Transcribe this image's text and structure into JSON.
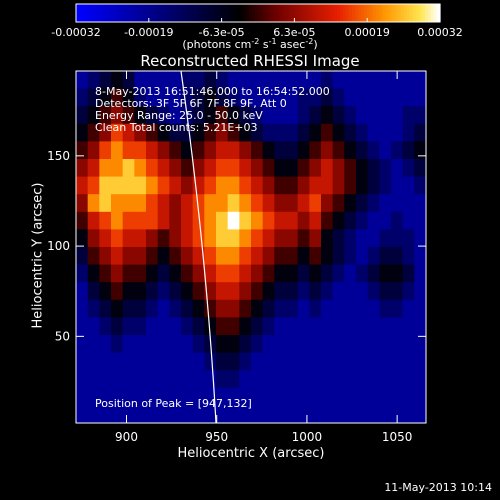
{
  "header": {
    "title": "Reconstructed RHESSI Image",
    "colorbar_unit_main": "(photons cm",
    "colorbar_unit_exp1": "-2",
    "colorbar_unit_mid1": " s",
    "colorbar_unit_exp2": "-1",
    "colorbar_unit_mid2": " asec",
    "colorbar_unit_exp3": "-2",
    "colorbar_unit_end": ")"
  },
  "info": {
    "time_range": "8-May-2013 16:51:46.000 to 16:54:52.000",
    "detectors": "Detectors: 3F 5F 6F 7F 8F 9F, Att 0",
    "energy": "Energy Range: 25.0 - 50.0 keV",
    "clean": "Clean    Total counts: 5.21E+03",
    "peak": "Position of Peak = [947,132]"
  },
  "footer": {
    "timestamp": "11-May-2013 10:14"
  },
  "colors": {
    "low": "#0000ff",
    "mid": "#000000",
    "high": "#ffffff"
  },
  "chart_data": {
    "type": "heatmap",
    "title": "Reconstructed RHESSI Image",
    "xlabel": "Heliocentric X (arcsec)",
    "ylabel": "Heliocentric Y (arcsec)",
    "xlim": [
      872,
      1066
    ],
    "ylim": [
      2,
      197
    ],
    "xticks": [
      900,
      950,
      1000,
      1050
    ],
    "yticks": [
      50,
      100,
      150
    ],
    "colorbar": {
      "range": [
        -0.00032,
        0.00032
      ],
      "ticks": [
        "-0.00032",
        "-0.00019",
        "-6.3e-05",
        "6.3e-05",
        "0.00019",
        "0.00032"
      ],
      "colormap": "blue-black-red-yellow-white"
    },
    "peak": [
      947,
      132
    ],
    "grid_rows_top_to_bottom": [
      "012320000112100000000100000000",
      "123431000123210000011210000000",
      "234543210123432100012321000011",
      "345765432234543211123432100012",
      "457877654345665432234543210123",
      "568898765456776543345654321012",
      "679999876567887654456654321001",
      "589888765678898765567543210000",
      "4678777656789a9876656432100100",
      "356766545678998765545321001110",
      "245655434567887654434321012210",
      "134544323456776543323210123320",
      "023433212345665432212100012210",
      "012322101234554321101000001100",
      "001211000123443210000000000000",
      "000100000012332100000000000000",
      "000000000001221000000000000000",
      "000000000000110000000000000000",
      "000000000000000000000000000000",
      "000000000000000000000000000000"
    ]
  }
}
